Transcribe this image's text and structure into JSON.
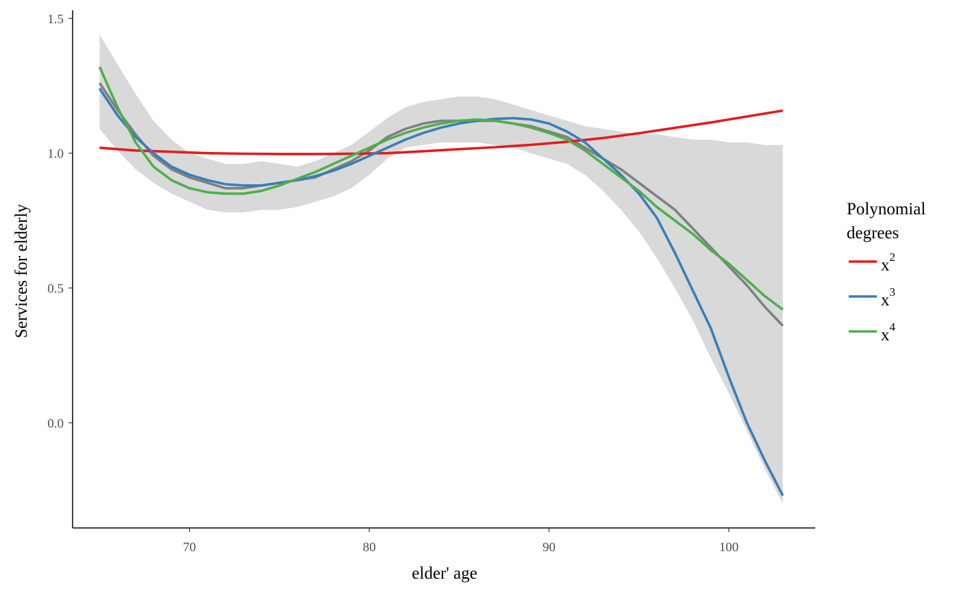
{
  "chart_data": {
    "type": "line",
    "title": "",
    "xlabel": "elder' age",
    "ylabel": "Services for elderly",
    "xlim": [
      63.5,
      104.8
    ],
    "ylim": [
      -0.39,
      1.53
    ],
    "x_ticks": [
      70,
      80,
      90,
      100
    ],
    "x_tick_labels": [
      "70",
      "80",
      "90",
      "100"
    ],
    "y_ticks": [
      0.0,
      0.5,
      1.0,
      1.5
    ],
    "y_tick_labels": [
      "0.0",
      "0.5",
      "1.0",
      "1.5"
    ],
    "grid": false,
    "legend": {
      "title": "Polynomial degrees",
      "title_lines": [
        "Polynomial",
        "degrees"
      ],
      "placement": "right",
      "entries": [
        {
          "base": "x",
          "sup": "2",
          "color": "#e41a1c"
        },
        {
          "base": "x",
          "sup": "3",
          "color": "#377eb8"
        },
        {
          "base": "x",
          "sup": "4",
          "color": "#4daf4a"
        }
      ]
    },
    "ribbon": {
      "color": "#d9d9d9",
      "x": [
        65,
        66,
        67,
        68,
        69,
        70,
        71,
        72,
        73,
        74,
        75,
        76,
        77,
        78,
        79,
        80,
        81,
        82,
        83,
        84,
        85,
        86,
        87,
        88,
        89,
        90,
        91,
        92,
        93,
        94,
        95,
        96,
        97,
        98,
        99,
        100,
        101,
        102,
        103
      ],
      "upper": [
        1.44,
        1.33,
        1.22,
        1.12,
        1.05,
        1.0,
        0.98,
        0.96,
        0.96,
        0.97,
        0.96,
        0.95,
        0.97,
        1.0,
        1.03,
        1.08,
        1.13,
        1.17,
        1.19,
        1.2,
        1.21,
        1.21,
        1.2,
        1.18,
        1.16,
        1.14,
        1.12,
        1.1,
        1.09,
        1.08,
        1.07,
        1.07,
        1.06,
        1.05,
        1.05,
        1.04,
        1.04,
        1.03,
        1.03
      ],
      "lower": [
        1.09,
        1.01,
        0.94,
        0.89,
        0.85,
        0.82,
        0.79,
        0.78,
        0.78,
        0.79,
        0.79,
        0.8,
        0.82,
        0.84,
        0.87,
        0.92,
        0.98,
        1.02,
        1.03,
        1.04,
        1.04,
        1.04,
        1.03,
        1.02,
        1.0,
        0.98,
        0.96,
        0.92,
        0.86,
        0.79,
        0.71,
        0.61,
        0.5,
        0.38,
        0.24,
        0.11,
        -0.03,
        -0.17,
        -0.3
      ]
    },
    "series": [
      {
        "color": "#808080",
        "x": [
          65,
          66,
          67,
          68,
          69,
          70,
          71,
          72,
          73,
          74,
          75,
          76,
          77,
          78,
          79,
          80,
          81,
          82,
          83,
          84,
          85,
          86,
          87,
          88,
          89,
          90,
          91,
          92,
          93,
          94,
          95,
          96,
          97,
          98,
          99,
          100,
          101,
          102,
          103
        ],
        "values": [
          1.26,
          1.16,
          1.07,
          0.99,
          0.94,
          0.91,
          0.89,
          0.87,
          0.87,
          0.88,
          0.89,
          0.9,
          0.91,
          0.94,
          0.97,
          1.01,
          1.06,
          1.09,
          1.11,
          1.12,
          1.12,
          1.12,
          1.12,
          1.11,
          1.1,
          1.08,
          1.06,
          1.02,
          0.98,
          0.94,
          0.89,
          0.84,
          0.79,
          0.72,
          0.65,
          0.58,
          0.51,
          0.43,
          0.36
        ]
      },
      {
        "color": "#e41a1c",
        "x": [
          65,
          67,
          69,
          71,
          73,
          75,
          77,
          79,
          81,
          83,
          85,
          87,
          89,
          91,
          93,
          95,
          97,
          99,
          101,
          103
        ],
        "values": [
          1.02,
          1.01,
          1.005,
          1.0,
          0.998,
          0.997,
          0.997,
          0.998,
          1.0,
          1.007,
          1.015,
          1.022,
          1.031,
          1.042,
          1.056,
          1.074,
          1.094,
          1.114,
          1.136,
          1.158
        ]
      },
      {
        "color": "#377eb8",
        "x": [
          65,
          66,
          67,
          68,
          69,
          70,
          71,
          72,
          73,
          74,
          75,
          76,
          77,
          78,
          79,
          80,
          81,
          82,
          83,
          84,
          85,
          86,
          87,
          88,
          89,
          90,
          91,
          92,
          93,
          94,
          95,
          96,
          97,
          98,
          99,
          100,
          101,
          102,
          103
        ],
        "values": [
          1.24,
          1.14,
          1.06,
          1.0,
          0.95,
          0.92,
          0.9,
          0.885,
          0.88,
          0.88,
          0.89,
          0.9,
          0.915,
          0.935,
          0.96,
          0.99,
          1.02,
          1.05,
          1.075,
          1.095,
          1.11,
          1.12,
          1.127,
          1.13,
          1.125,
          1.11,
          1.08,
          1.04,
          0.98,
          0.92,
          0.85,
          0.76,
          0.63,
          0.49,
          0.35,
          0.17,
          0.0,
          -0.14,
          -0.27
        ]
      },
      {
        "color": "#4daf4a",
        "x": [
          65,
          66,
          67,
          68,
          69,
          70,
          71,
          72,
          73,
          74,
          75,
          76,
          77,
          78,
          79,
          80,
          81,
          82,
          83,
          84,
          85,
          86,
          87,
          88,
          89,
          90,
          91,
          92,
          93,
          94,
          95,
          96,
          97,
          98,
          99,
          100,
          101,
          102,
          103
        ],
        "values": [
          1.32,
          1.17,
          1.04,
          0.95,
          0.9,
          0.87,
          0.855,
          0.85,
          0.85,
          0.86,
          0.88,
          0.905,
          0.93,
          0.96,
          0.99,
          1.02,
          1.05,
          1.075,
          1.095,
          1.11,
          1.12,
          1.125,
          1.12,
          1.11,
          1.095,
          1.075,
          1.05,
          1.01,
          0.96,
          0.91,
          0.86,
          0.8,
          0.75,
          0.7,
          0.64,
          0.59,
          0.53,
          0.47,
          0.42
        ]
      }
    ]
  }
}
